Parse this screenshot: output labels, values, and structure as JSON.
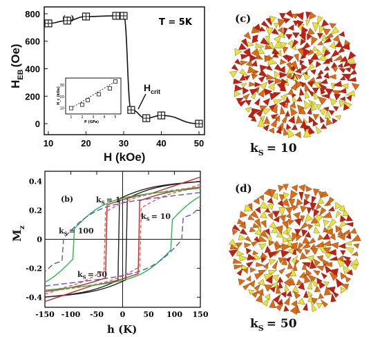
{
  "chart_data": [
    {
      "panel": "(a)",
      "type": "line",
      "annotation": "T = 5K",
      "xlabel": "H (kOe)",
      "ylabel_main": "H",
      "ylabel_sub": "EB",
      "ylabel_unit": "(Oe)",
      "xlim": [
        10,
        50
      ],
      "ylim": [
        -80,
        850
      ],
      "xticks": [
        10,
        20,
        30,
        40,
        50
      ],
      "yticks": [
        0,
        200,
        400,
        600,
        800
      ],
      "x": [
        10,
        15,
        20,
        28,
        30,
        32,
        36,
        40,
        50
      ],
      "y": [
        730,
        750,
        780,
        785,
        785,
        100,
        40,
        60,
        0
      ],
      "arrow_label_main": "H",
      "arrow_label_sub": "crit",
      "inset": {
        "type": "scatter",
        "xlabel": "P (GPa)",
        "ylabel": "H_c (kOe)",
        "xlim": [
          0.5,
          5.5
        ],
        "ylim": [
          5,
          36
        ],
        "xticks": [
          1,
          2,
          3,
          4,
          5
        ],
        "yticks": [
          10,
          20,
          30
        ],
        "x": [
          1,
          2,
          2.5,
          3.5,
          4.5,
          5
        ],
        "y": [
          10,
          13,
          17,
          22,
          27,
          33
        ]
      }
    },
    {
      "panel": "(b)",
      "type": "line",
      "xlabel": "h (K)",
      "ylabel": "M",
      "ylabel_sub": "z",
      "xlim": [
        -150,
        150
      ],
      "ylim": [
        -0.47,
        0.47
      ],
      "xticks": [
        -150,
        -100,
        -50,
        0,
        50,
        100,
        150
      ],
      "yticks": [
        -0.4,
        -0.2,
        0,
        0.2,
        0.4
      ],
      "label_prefix": "k",
      "label_sub": "S",
      "series": [
        {
          "label": "= 1",
          "color": "#222222",
          "dash": "",
          "coercive": 8,
          "mr": 0.28,
          "top": 0.36,
          "slope": 0.00077
        },
        {
          "label": "= 10",
          "color": "#cc2222",
          "dash": "",
          "coercive": 30,
          "mr": 0.25,
          "top": 0.3,
          "slope": 0.0012
        },
        {
          "label": "= 50",
          "color": "#ee5555",
          "dash": "5,3",
          "coercive": 35,
          "mr": 0.2,
          "top": 0.3,
          "slope": 0.0012
        },
        {
          "label": "= 100",
          "color": "#22bb44",
          "dash": "",
          "coercive": 95,
          "mr": 0.1,
          "top": 0.3,
          "slope": 0.001
        },
        {
          "label": "",
          "color": "#5555cc",
          "dash": "8,4",
          "coercive": 115,
          "mr": 0.05,
          "top": 0.26,
          "slope": 0.0012
        }
      ]
    },
    {
      "panel": "(c)",
      "type": "other",
      "label_prefix": "k",
      "label_sub": "S",
      "label_value": "= 10"
    },
    {
      "panel": "(d)",
      "type": "other",
      "label_prefix": "k",
      "label_sub": "S",
      "label_value": "= 50"
    }
  ],
  "colors": {
    "cone_red": "#c81e12",
    "cone_orange": "#e06a10",
    "cone_yellow": "#e8e430",
    "axis": "#111111"
  }
}
